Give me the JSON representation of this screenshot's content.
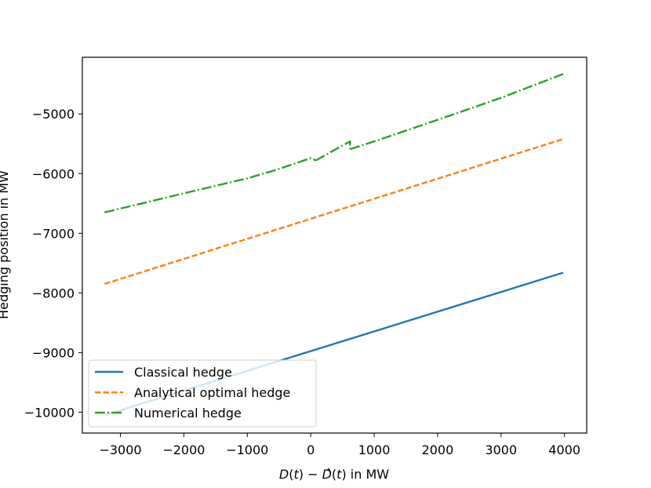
{
  "chart_data": {
    "type": "line",
    "title": "",
    "xlabel_parts": [
      "D",
      "(",
      "t",
      ") − ",
      "D",
      "̂",
      "(",
      "t",
      ") in MW"
    ],
    "ylabel": "Hedging position in MW",
    "xlim": [
      -3600,
      4350
    ],
    "ylim": [
      -10350,
      -4050
    ],
    "xticks": [
      -3000,
      -2000,
      -1000,
      0,
      1000,
      2000,
      3000,
      4000
    ],
    "xtick_labels": [
      "−3000",
      "−2000",
      "−1000",
      "0",
      "1000",
      "2000",
      "3000",
      "4000"
    ],
    "yticks": [
      -10000,
      -9000,
      -8000,
      -7000,
      -6000,
      -5000
    ],
    "ytick_labels": [
      "−10000",
      "−9000",
      "−8000",
      "−7000",
      "−6000",
      "−5000"
    ],
    "grid": false,
    "legend_position": "lower left",
    "series": [
      {
        "name": "Classical hedge",
        "color": "#1f77b4",
        "style": "solid",
        "x": [
          -3250,
          3980
        ],
        "y": [
          -10050,
          -7660
        ]
      },
      {
        "name": "Analytical optimal hedge",
        "color": "#ff7f0e",
        "style": "dashed",
        "x": [
          -3250,
          3980
        ],
        "y": [
          -7850,
          -5420
        ]
      },
      {
        "name": "Numerical hedge",
        "color": "#2ca02c",
        "style": "dashdot",
        "segments": [
          {
            "x": [
              -3250,
              -2000,
              -1000,
              -550,
              0,
              80
            ],
            "y": [
              -6650,
              -6330,
              -6080,
              -5940,
              -5740,
              -5780
            ]
          },
          {
            "x": [
              80,
              620,
              620
            ],
            "y": [
              -5780,
              -5460,
              -5590
            ]
          },
          {
            "x": [
              620,
              1000,
              2000,
              3000,
              3980
            ],
            "y": [
              -5590,
              -5460,
              -5100,
              -4730,
              -4330
            ]
          }
        ]
      }
    ]
  }
}
